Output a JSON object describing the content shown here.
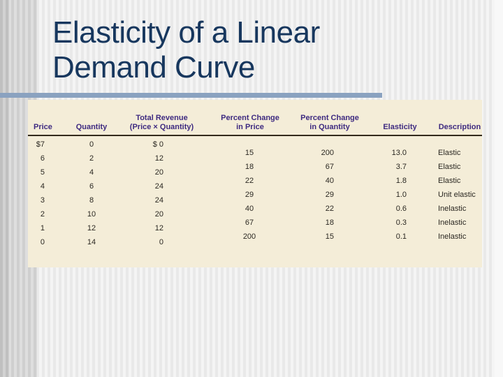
{
  "title": {
    "line1": "Elasticity of a Linear",
    "line2": "Demand Curve"
  },
  "colors": {
    "title_navy": "#17375e",
    "title_rule_blue": "#8aa2c0",
    "table_background_cream": "#f4edd8",
    "header_purple": "#3e2a80",
    "data_text": "#2b2822"
  },
  "table": {
    "headers": [
      {
        "line1": "",
        "line2": "Price"
      },
      {
        "line1": "",
        "line2": "Quantity"
      },
      {
        "line1": "Total Revenue",
        "line2": "(Price × Quantity)"
      },
      {
        "line1": "Percent Change",
        "line2": "in Price"
      },
      {
        "line1": "Percent Change",
        "line2": "in Quantity"
      },
      {
        "line1": "",
        "line2": "Elasticity"
      },
      {
        "line1": "",
        "line2": "Description"
      }
    ],
    "main_rows": [
      {
        "price": "$7",
        "quantity": "0",
        "revenue": "$ 0"
      },
      {
        "price": "6",
        "quantity": "2",
        "revenue": "12"
      },
      {
        "price": "5",
        "quantity": "4",
        "revenue": "20"
      },
      {
        "price": "4",
        "quantity": "6",
        "revenue": "24"
      },
      {
        "price": "3",
        "quantity": "8",
        "revenue": "24"
      },
      {
        "price": "2",
        "quantity": "10",
        "revenue": "20"
      },
      {
        "price": "1",
        "quantity": "12",
        "revenue": "12"
      },
      {
        "price": "0",
        "quantity": "14",
        "revenue": "0"
      }
    ],
    "interval_rows": [
      {
        "pct_price": "15",
        "pct_qty": "200",
        "elasticity": "13.0",
        "description": "Elastic"
      },
      {
        "pct_price": "18",
        "pct_qty": "67",
        "elasticity": "3.7",
        "description": "Elastic"
      },
      {
        "pct_price": "22",
        "pct_qty": "40",
        "elasticity": "1.8",
        "description": "Elastic"
      },
      {
        "pct_price": "29",
        "pct_qty": "29",
        "elasticity": "1.0",
        "description": "Unit elastic"
      },
      {
        "pct_price": "40",
        "pct_qty": "22",
        "elasticity": "0.6",
        "description": "Inelastic"
      },
      {
        "pct_price": "67",
        "pct_qty": "18",
        "elasticity": "0.3",
        "description": "Inelastic"
      },
      {
        "pct_price": "200",
        "pct_qty": "15",
        "elasticity": "0.1",
        "description": "Inelastic"
      }
    ]
  },
  "chart_data": {
    "type": "table",
    "title": "Elasticity of a Linear Demand Curve",
    "columns": [
      "Price",
      "Quantity",
      "Total Revenue (Price × Quantity)",
      "Percent Change in Price",
      "Percent Change in Quantity",
      "Elasticity",
      "Description"
    ],
    "price": [
      7,
      6,
      5,
      4,
      3,
      2,
      1,
      0
    ],
    "quantity": [
      0,
      2,
      4,
      6,
      8,
      10,
      12,
      14
    ],
    "total_revenue": [
      0,
      12,
      20,
      24,
      24,
      20,
      12,
      0
    ],
    "percent_change_in_price": [
      15,
      18,
      22,
      29,
      40,
      67,
      200
    ],
    "percent_change_in_quantity": [
      200,
      67,
      40,
      29,
      22,
      18,
      15
    ],
    "elasticity": [
      13.0,
      3.7,
      1.8,
      1.0,
      0.6,
      0.3,
      0.1
    ],
    "description": [
      "Elastic",
      "Elastic",
      "Elastic",
      "Unit elastic",
      "Inelastic",
      "Inelastic",
      "Inelastic"
    ],
    "layout_note": "percent-change/elasticity/description rows are staggered between adjacent price rows"
  }
}
